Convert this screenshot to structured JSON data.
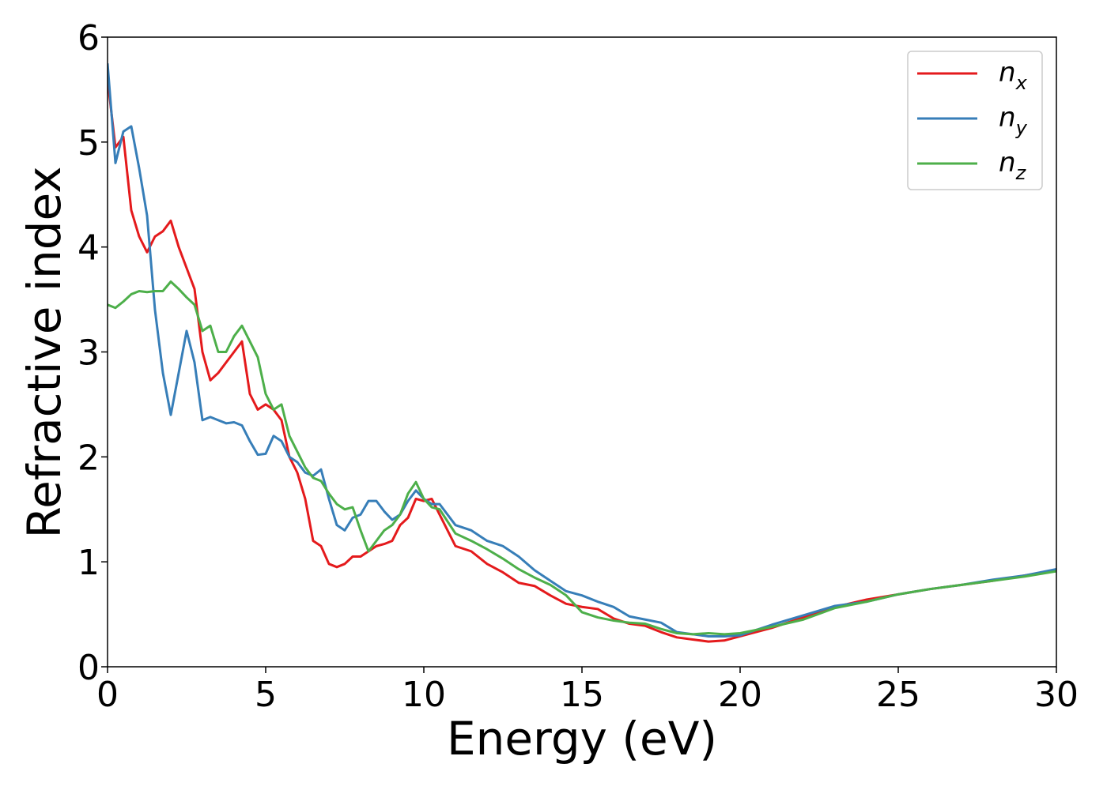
{
  "chart_data": {
    "type": "line",
    "xlabel": "Energy (eV)",
    "ylabel": "Refractive index",
    "x": [
      0,
      0.25,
      0.5,
      0.75,
      1,
      1.25,
      1.5,
      1.75,
      2,
      2.25,
      2.5,
      2.75,
      3,
      3.25,
      3.5,
      3.75,
      4,
      4.25,
      4.5,
      4.75,
      5,
      5.25,
      5.5,
      5.75,
      6,
      6.25,
      6.5,
      6.75,
      7,
      7.25,
      7.5,
      7.75,
      8,
      8.25,
      8.5,
      8.75,
      9,
      9.25,
      9.5,
      9.75,
      10,
      10.25,
      10.5,
      11,
      11.5,
      12,
      12.5,
      13,
      13.5,
      14,
      14.5,
      15,
      15.5,
      16,
      16.5,
      17,
      17.5,
      18,
      18.5,
      19,
      19.5,
      20,
      21,
      22,
      23,
      24,
      25,
      26,
      27,
      28,
      29,
      30
    ],
    "series": [
      {
        "name": "nx",
        "color": "#e41a1c",
        "values": [
          5.6,
          4.95,
          5.05,
          4.35,
          4.1,
          3.95,
          4.1,
          4.15,
          4.25,
          4.0,
          3.8,
          3.6,
          3.0,
          2.73,
          2.8,
          2.9,
          3.0,
          3.1,
          2.6,
          2.45,
          2.5,
          2.45,
          2.35,
          2.0,
          1.85,
          1.6,
          1.2,
          1.15,
          0.98,
          0.95,
          0.98,
          1.05,
          1.05,
          1.1,
          1.15,
          1.17,
          1.2,
          1.35,
          1.42,
          1.6,
          1.58,
          1.6,
          1.45,
          1.15,
          1.1,
          0.98,
          0.9,
          0.8,
          0.77,
          0.68,
          0.6,
          0.57,
          0.55,
          0.46,
          0.41,
          0.39,
          0.33,
          0.28,
          0.26,
          0.24,
          0.25,
          0.29,
          0.37,
          0.47,
          0.57,
          0.64,
          0.69,
          0.74,
          0.78,
          0.82,
          0.87,
          0.92
        ]
      },
      {
        "name": "ny",
        "color": "#377eb8",
        "values": [
          5.75,
          4.8,
          5.1,
          5.15,
          4.75,
          4.3,
          3.4,
          2.8,
          2.4,
          2.8,
          3.2,
          2.9,
          2.35,
          2.38,
          2.35,
          2.32,
          2.33,
          2.3,
          2.15,
          2.02,
          2.03,
          2.2,
          2.15,
          2.0,
          1.95,
          1.85,
          1.82,
          1.88,
          1.6,
          1.35,
          1.3,
          1.42,
          1.45,
          1.58,
          1.58,
          1.48,
          1.4,
          1.45,
          1.58,
          1.68,
          1.6,
          1.55,
          1.55,
          1.35,
          1.3,
          1.2,
          1.15,
          1.05,
          0.92,
          0.82,
          0.72,
          0.68,
          0.62,
          0.57,
          0.48,
          0.45,
          0.42,
          0.33,
          0.31,
          0.29,
          0.29,
          0.3,
          0.4,
          0.49,
          0.58,
          0.62,
          0.69,
          0.74,
          0.78,
          0.83,
          0.87,
          0.93
        ]
      },
      {
        "name": "nz",
        "color": "#4daf4a",
        "values": [
          3.45,
          3.42,
          3.48,
          3.55,
          3.58,
          3.57,
          3.58,
          3.58,
          3.67,
          3.6,
          3.52,
          3.45,
          3.2,
          3.25,
          3.0,
          3.0,
          3.15,
          3.25,
          3.1,
          2.95,
          2.6,
          2.45,
          2.5,
          2.2,
          2.05,
          1.9,
          1.8,
          1.77,
          1.65,
          1.55,
          1.5,
          1.52,
          1.3,
          1.1,
          1.2,
          1.3,
          1.35,
          1.45,
          1.65,
          1.76,
          1.6,
          1.52,
          1.5,
          1.27,
          1.2,
          1.12,
          1.03,
          0.93,
          0.85,
          0.78,
          0.68,
          0.52,
          0.47,
          0.44,
          0.42,
          0.41,
          0.36,
          0.32,
          0.31,
          0.32,
          0.31,
          0.32,
          0.38,
          0.45,
          0.56,
          0.62,
          0.69,
          0.74,
          0.78,
          0.82,
          0.86,
          0.91
        ]
      }
    ],
    "xlim": [
      0,
      30
    ],
    "xticks": [
      0,
      5,
      10,
      15,
      20,
      25,
      30
    ],
    "ylim": [
      0,
      6
    ],
    "yticks": [
      0,
      1,
      2,
      3,
      4,
      5,
      6
    ],
    "grid": false,
    "legend": "upper right"
  }
}
